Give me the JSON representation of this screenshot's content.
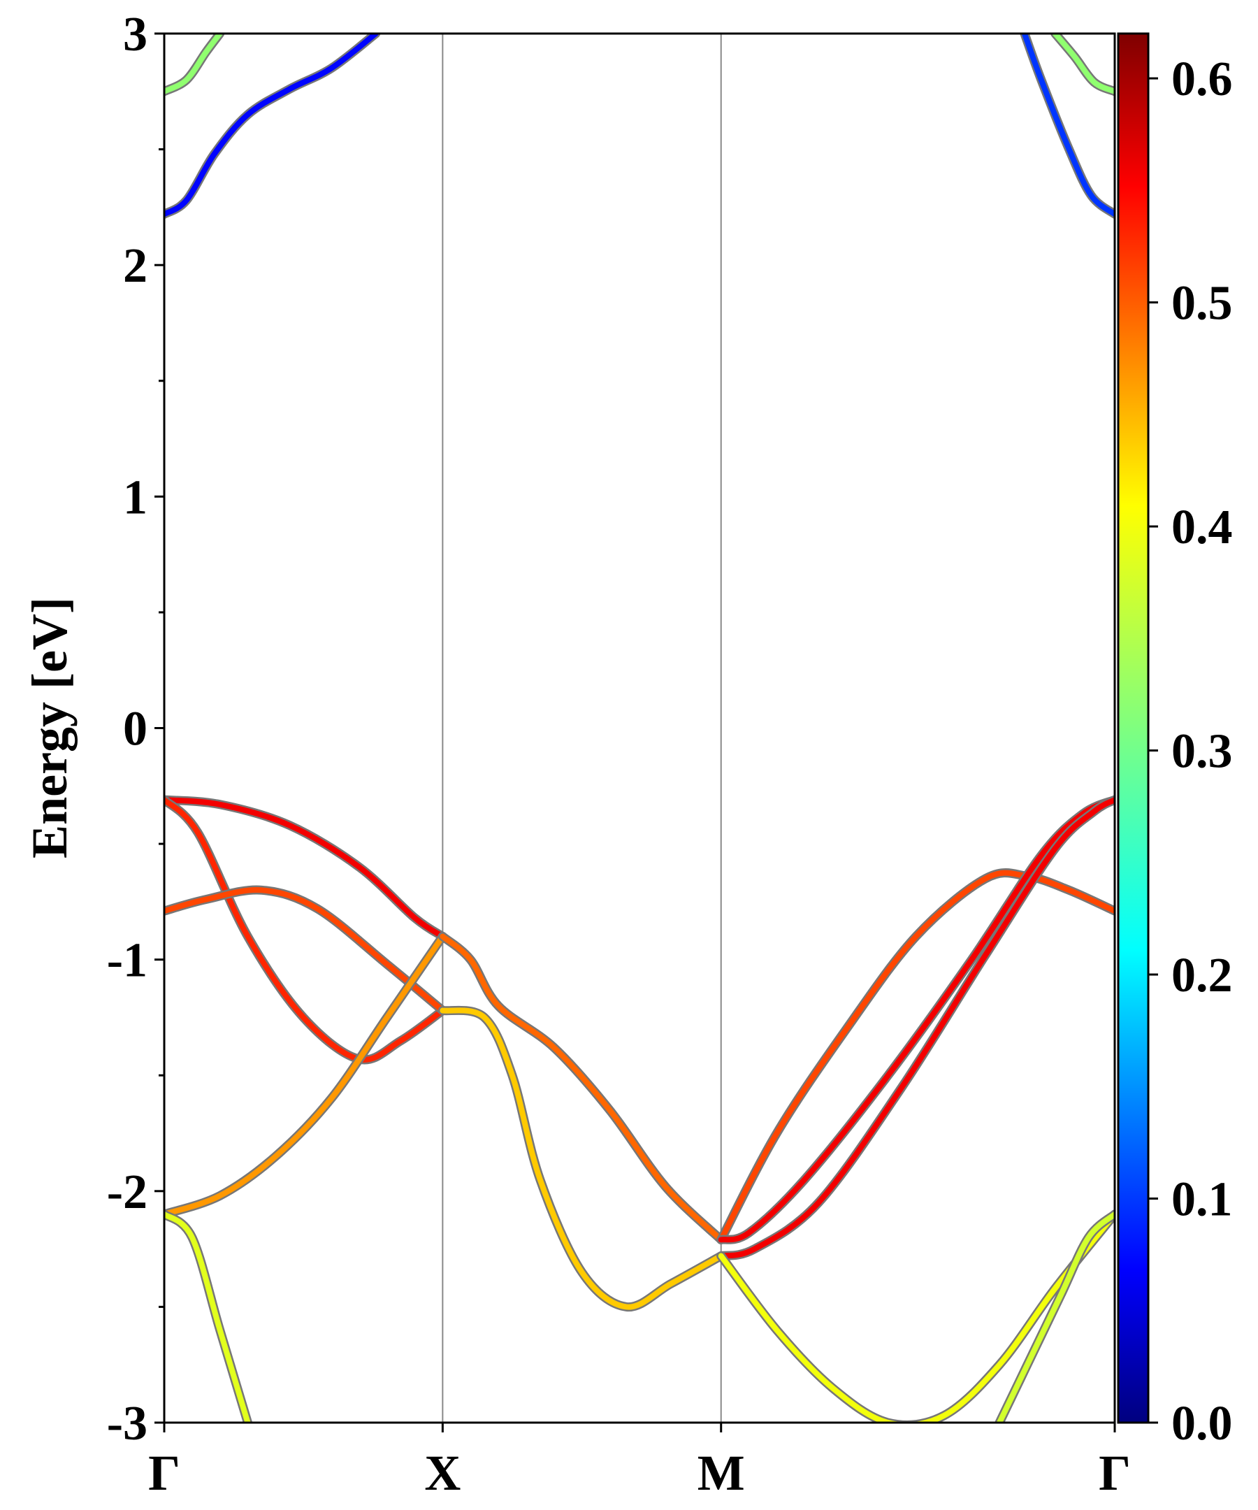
{
  "chart_data": {
    "type": "line",
    "title": "",
    "xlabel": "",
    "ylabel": "Energy [eV]",
    "ylim": [
      -3,
      3
    ],
    "x_ticks": [
      {
        "label": "Γ",
        "k": 0
      },
      {
        "label": "X",
        "k": 1
      },
      {
        "label": "M",
        "k": 2
      },
      {
        "label": "Γ",
        "k": 3.414
      }
    ],
    "y_ticks": [
      {
        "value": -3,
        "label": "-3"
      },
      {
        "value": -2,
        "label": "-2"
      },
      {
        "value": -1,
        "label": "-1"
      },
      {
        "value": 0,
        "label": "0"
      },
      {
        "value": 1,
        "label": "1"
      },
      {
        "value": 2,
        "label": "2"
      },
      {
        "value": 3,
        "label": "3"
      }
    ],
    "colorbar": {
      "range": [
        0,
        0.62
      ],
      "colormap": "jet",
      "ticks": [
        {
          "value": 0.0,
          "label": "0.0"
        },
        {
          "value": 0.1,
          "label": "0.1"
        },
        {
          "value": 0.2,
          "label": "0.2"
        },
        {
          "value": 0.3,
          "label": "0.3"
        },
        {
          "value": 0.4,
          "label": "0.4"
        },
        {
          "value": 0.5,
          "label": "0.5"
        },
        {
          "value": 0.6,
          "label": "0.6"
        }
      ]
    },
    "series": [
      {
        "color_value": 0.08,
        "points": [
          [
            0,
            2.22
          ],
          [
            0.08,
            2.28
          ],
          [
            0.18,
            2.48
          ],
          [
            0.3,
            2.65
          ],
          [
            0.45,
            2.76
          ],
          [
            0.6,
            2.85
          ],
          [
            0.76,
            3.0
          ]
        ]
      },
      {
        "color_value": 0.32,
        "points": [
          [
            0,
            2.75
          ],
          [
            0.08,
            2.8
          ],
          [
            0.15,
            2.92
          ],
          [
            0.2,
            3.0
          ]
        ]
      },
      {
        "color_value": 0.11,
        "points": [
          [
            3.09,
            3.0
          ],
          [
            3.15,
            2.8
          ],
          [
            3.25,
            2.5
          ],
          [
            3.33,
            2.3
          ],
          [
            3.414,
            2.22
          ]
        ]
      },
      {
        "color_value": 0.32,
        "points": [
          [
            3.2,
            3.0
          ],
          [
            3.27,
            2.9
          ],
          [
            3.34,
            2.79
          ],
          [
            3.414,
            2.75
          ]
        ]
      },
      {
        "color_value": 0.55,
        "points": [
          [
            0,
            -0.31
          ],
          [
            0.2,
            -0.33
          ],
          [
            0.45,
            -0.42
          ],
          [
            0.7,
            -0.6
          ],
          [
            0.9,
            -0.82
          ],
          [
            1.0,
            -0.9
          ]
        ]
      },
      {
        "color_value": 0.52,
        "points": [
          [
            0,
            -0.31
          ],
          [
            0.12,
            -0.45
          ],
          [
            0.3,
            -0.9
          ],
          [
            0.5,
            -1.25
          ],
          [
            0.7,
            -1.43
          ],
          [
            0.85,
            -1.35
          ],
          [
            1.0,
            -1.22
          ]
        ]
      },
      {
        "color_value": 0.5,
        "points": [
          [
            0,
            -0.79
          ],
          [
            0.15,
            -0.74
          ],
          [
            0.35,
            -0.7
          ],
          [
            0.55,
            -0.78
          ],
          [
            0.8,
            -1.02
          ],
          [
            1.0,
            -1.22
          ]
        ]
      },
      {
        "color_value": 0.45,
        "points": [
          [
            0,
            -2.1
          ],
          [
            0.2,
            -2.02
          ],
          [
            0.4,
            -1.85
          ],
          [
            0.6,
            -1.6
          ],
          [
            0.8,
            -1.25
          ],
          [
            1.0,
            -0.9
          ]
        ]
      },
      {
        "color_value": 0.37,
        "points": [
          [
            0,
            -2.1
          ],
          [
            0.1,
            -2.2
          ],
          [
            0.2,
            -2.6
          ],
          [
            0.3,
            -3.0
          ]
        ]
      },
      {
        "color_value": 0.48,
        "points": [
          [
            1.0,
            -0.9
          ],
          [
            1.1,
            -1.0
          ],
          [
            1.2,
            -1.2
          ],
          [
            1.4,
            -1.38
          ],
          [
            1.6,
            -1.65
          ],
          [
            1.8,
            -1.98
          ],
          [
            2.0,
            -2.21
          ]
        ]
      },
      {
        "color_value": 0.42,
        "points": [
          [
            1.0,
            -1.22
          ],
          [
            1.15,
            -1.25
          ],
          [
            1.25,
            -1.5
          ],
          [
            1.35,
            -1.95
          ],
          [
            1.5,
            -2.35
          ],
          [
            1.66,
            -2.5
          ],
          [
            1.82,
            -2.4
          ],
          [
            2.0,
            -2.28
          ]
        ]
      },
      {
        "color_value": 0.5,
        "points": [
          [
            2.0,
            -2.21
          ],
          [
            2.2,
            -1.75
          ],
          [
            2.45,
            -1.3
          ],
          [
            2.7,
            -0.9
          ],
          [
            2.95,
            -0.65
          ],
          [
            3.1,
            -0.64
          ],
          [
            3.25,
            -0.7
          ],
          [
            3.414,
            -0.79
          ]
        ]
      },
      {
        "color_value": 0.55,
        "points": [
          [
            2.0,
            -2.21
          ],
          [
            2.1,
            -2.18
          ],
          [
            2.3,
            -1.95
          ],
          [
            2.6,
            -1.5
          ],
          [
            2.9,
            -1.0
          ],
          [
            3.15,
            -0.55
          ],
          [
            3.3,
            -0.37
          ],
          [
            3.414,
            -0.31
          ]
        ]
      },
      {
        "color_value": 0.55,
        "points": [
          [
            2.0,
            -2.28
          ],
          [
            2.12,
            -2.25
          ],
          [
            2.35,
            -2.05
          ],
          [
            2.65,
            -1.55
          ],
          [
            2.95,
            -0.98
          ],
          [
            3.2,
            -0.52
          ],
          [
            3.34,
            -0.36
          ],
          [
            3.414,
            -0.31
          ]
        ]
      },
      {
        "color_value": 0.38,
        "points": [
          [
            2.0,
            -2.28
          ],
          [
            2.2,
            -2.6
          ],
          [
            2.4,
            -2.85
          ],
          [
            2.6,
            -3.0
          ],
          [
            2.8,
            -2.97
          ],
          [
            3.0,
            -2.75
          ],
          [
            3.2,
            -2.42
          ],
          [
            3.414,
            -2.1
          ]
        ]
      },
      {
        "color_value": 0.36,
        "points": [
          [
            3.0,
            -3.0
          ],
          [
            3.1,
            -2.75
          ],
          [
            3.22,
            -2.45
          ],
          [
            3.32,
            -2.2
          ],
          [
            3.414,
            -2.1
          ]
        ]
      }
    ]
  }
}
